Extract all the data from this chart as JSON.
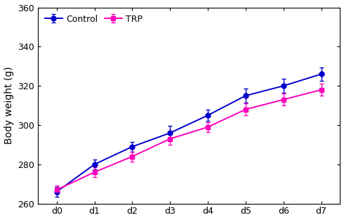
{
  "x_labels": [
    "d0",
    "d1",
    "d2",
    "d3",
    "d4",
    "d5",
    "d6",
    "d7"
  ],
  "x_values": [
    0,
    1,
    2,
    3,
    4,
    5,
    6,
    7
  ],
  "control_y": [
    266,
    280,
    289,
    296,
    305,
    315,
    320,
    326
  ],
  "control_err": [
    2.5,
    2.5,
    2.5,
    3.5,
    3.0,
    3.5,
    3.5,
    3.5
  ],
  "trp_y": [
    267,
    276,
    284,
    293,
    299,
    308,
    313,
    318
  ],
  "trp_err": [
    2.0,
    2.5,
    2.5,
    3.0,
    2.5,
    3.0,
    3.0,
    3.0
  ],
  "control_color": "#0000CD",
  "trp_color": "#FF00BB",
  "ylabel": "Body weight (g)",
  "ylim": [
    260,
    360
  ],
  "yticks": [
    260,
    280,
    300,
    320,
    340,
    360
  ],
  "legend_labels": [
    "Control",
    "TRP"
  ],
  "background_color": "#ffffff",
  "spine_color": "#000000",
  "tick_fontsize": 9,
  "ylabel_fontsize": 10,
  "legend_fontsize": 9,
  "linewidth": 1.4,
  "markersize": 5,
  "capsize": 2.5,
  "elinewidth": 1.0
}
